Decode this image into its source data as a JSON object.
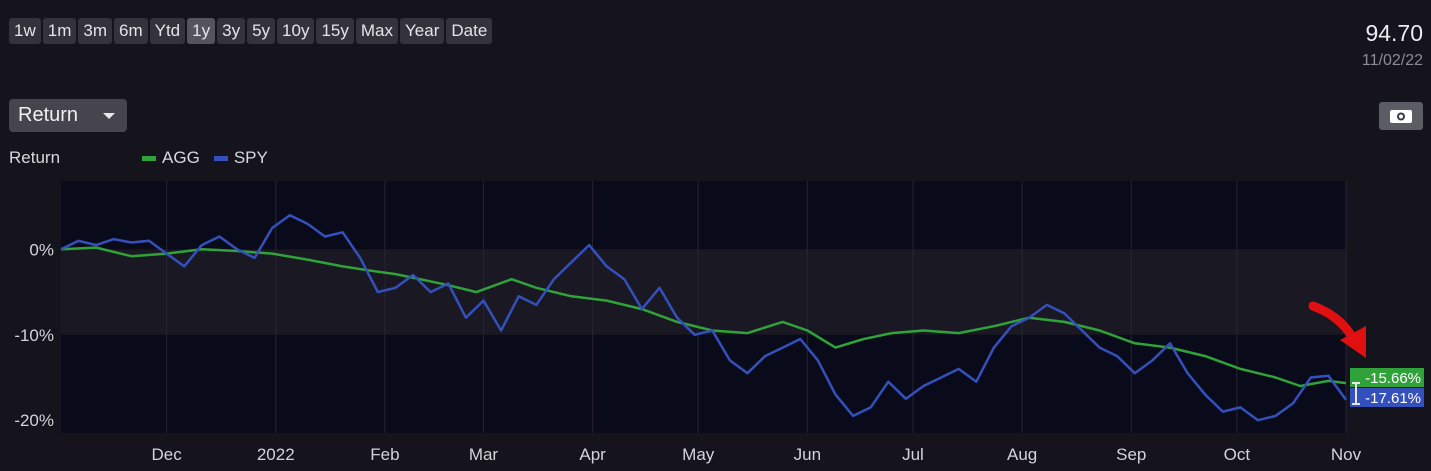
{
  "toolbar": {
    "ranges": [
      "1w",
      "1m",
      "3m",
      "6m",
      "Ytd",
      "1y",
      "3y",
      "5y",
      "10y",
      "15y",
      "Max",
      "Year",
      "Date"
    ],
    "active_range": "1y"
  },
  "quote": {
    "price": "94.70",
    "date": "11/02/22"
  },
  "metric_dropdown": {
    "label": "Return"
  },
  "camera_icon": "camera-icon",
  "colors": {
    "agg": "#2fa33a",
    "spy": "#3450bd",
    "band_dark": "#0a0b1a",
    "band_light": "#1a1822",
    "arrow": "#e01010"
  },
  "chart_data": {
    "type": "line",
    "ylabel": "Return",
    "yticks": [
      0,
      -10,
      -20
    ],
    "ytick_labels": [
      "0%",
      "-10%",
      "-20%"
    ],
    "ylim": [
      -21.5,
      8
    ],
    "xlim": [
      0,
      365
    ],
    "x_units": "days since chart start",
    "xticks": [
      {
        "label": "Dec",
        "x": 30
      },
      {
        "label": "2022",
        "x": 61
      },
      {
        "label": "Feb",
        "x": 92
      },
      {
        "label": "Mar",
        "x": 120
      },
      {
        "label": "Apr",
        "x": 151
      },
      {
        "label": "May",
        "x": 181
      },
      {
        "label": "Jun",
        "x": 212
      },
      {
        "label": "Jul",
        "x": 242
      },
      {
        "label": "Aug",
        "x": 273
      },
      {
        "label": "Sep",
        "x": 304
      },
      {
        "label": "Oct",
        "x": 334
      },
      {
        "label": "Nov",
        "x": 365
      }
    ],
    "series": [
      {
        "name": "AGG",
        "last_label": "-15.66%",
        "points": [
          [
            0,
            0
          ],
          [
            10,
            0.2
          ],
          [
            20,
            -0.8
          ],
          [
            30,
            -0.5
          ],
          [
            40,
            0
          ],
          [
            50,
            -0.2
          ],
          [
            60,
            -0.5
          ],
          [
            70,
            -1.2
          ],
          [
            80,
            -2
          ],
          [
            88,
            -2.5
          ],
          [
            95,
            -2.9
          ],
          [
            102,
            -3.5
          ],
          [
            110,
            -4.2
          ],
          [
            118,
            -5
          ],
          [
            128,
            -3.5
          ],
          [
            135,
            -4.5
          ],
          [
            145,
            -5.5
          ],
          [
            155,
            -6
          ],
          [
            165,
            -7
          ],
          [
            175,
            -8.5
          ],
          [
            185,
            -9.5
          ],
          [
            195,
            -9.8
          ],
          [
            205,
            -8.5
          ],
          [
            212,
            -9.5
          ],
          [
            220,
            -11.5
          ],
          [
            228,
            -10.5
          ],
          [
            236,
            -9.8
          ],
          [
            245,
            -9.5
          ],
          [
            255,
            -9.8
          ],
          [
            265,
            -9
          ],
          [
            275,
            -8
          ],
          [
            285,
            -8.5
          ],
          [
            295,
            -9.5
          ],
          [
            305,
            -11
          ],
          [
            315,
            -11.5
          ],
          [
            325,
            -12.5
          ],
          [
            335,
            -14
          ],
          [
            345,
            -15
          ],
          [
            352,
            -16
          ],
          [
            360,
            -15.4
          ],
          [
            365,
            -15.66
          ]
        ]
      },
      {
        "name": "SPY",
        "last_label": "-17.61%",
        "points": [
          [
            0,
            0
          ],
          [
            5,
            1
          ],
          [
            10,
            0.5
          ],
          [
            15,
            1.2
          ],
          [
            20,
            0.8
          ],
          [
            25,
            1
          ],
          [
            30,
            -0.5
          ],
          [
            35,
            -2
          ],
          [
            40,
            0.5
          ],
          [
            45,
            1.5
          ],
          [
            50,
            0
          ],
          [
            55,
            -1
          ],
          [
            60,
            2.5
          ],
          [
            65,
            4
          ],
          [
            70,
            3
          ],
          [
            75,
            1.5
          ],
          [
            80,
            2
          ],
          [
            85,
            -1
          ],
          [
            90,
            -5
          ],
          [
            95,
            -4.5
          ],
          [
            100,
            -3
          ],
          [
            105,
            -5
          ],
          [
            110,
            -4
          ],
          [
            115,
            -8
          ],
          [
            120,
            -6
          ],
          [
            125,
            -9.5
          ],
          [
            130,
            -5.5
          ],
          [
            135,
            -6.5
          ],
          [
            140,
            -3.5
          ],
          [
            145,
            -1.5
          ],
          [
            150,
            0.5
          ],
          [
            155,
            -2
          ],
          [
            160,
            -3.5
          ],
          [
            165,
            -7
          ],
          [
            170,
            -4.5
          ],
          [
            175,
            -8
          ],
          [
            180,
            -10
          ],
          [
            185,
            -9.5
          ],
          [
            190,
            -13
          ],
          [
            195,
            -14.5
          ],
          [
            200,
            -12.5
          ],
          [
            205,
            -11.5
          ],
          [
            210,
            -10.5
          ],
          [
            215,
            -13
          ],
          [
            220,
            -17
          ],
          [
            225,
            -19.5
          ],
          [
            230,
            -18.5
          ],
          [
            235,
            -15.5
          ],
          [
            240,
            -17.5
          ],
          [
            245,
            -16
          ],
          [
            250,
            -15
          ],
          [
            255,
            -14
          ],
          [
            260,
            -15.5
          ],
          [
            265,
            -11.5
          ],
          [
            270,
            -9
          ],
          [
            275,
            -8
          ],
          [
            280,
            -6.5
          ],
          [
            285,
            -7.5
          ],
          [
            290,
            -9.5
          ],
          [
            295,
            -11.5
          ],
          [
            300,
            -12.5
          ],
          [
            305,
            -14.5
          ],
          [
            310,
            -13
          ],
          [
            315,
            -11
          ],
          [
            320,
            -14.5
          ],
          [
            325,
            -17
          ],
          [
            330,
            -19
          ],
          [
            335,
            -18.5
          ],
          [
            340,
            -20
          ],
          [
            345,
            -19.5
          ],
          [
            350,
            -18
          ],
          [
            355,
            -15
          ],
          [
            360,
            -14.8
          ],
          [
            365,
            -17.61
          ]
        ]
      }
    ]
  }
}
